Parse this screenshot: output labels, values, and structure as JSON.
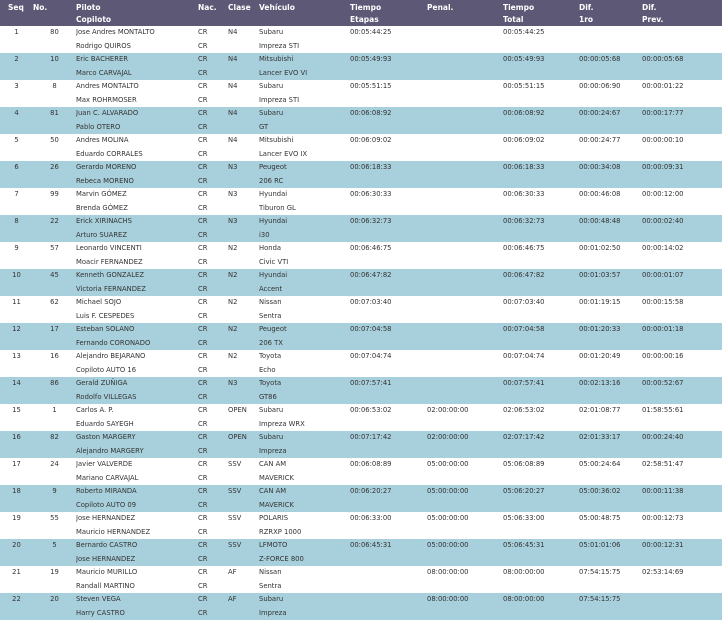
{
  "headers": {
    "seq": "Seq",
    "no": "No.",
    "piloto": "Piloto",
    "copiloto": "Copiloto",
    "nac": "Nac.",
    "clase": "Clase",
    "vehiculo": "Vehículo",
    "tiempo_etapas_1": "Tiempo",
    "tiempo_etapas_2": "Etapas",
    "penal": "Penal.",
    "tiempo_total_1": "Tiempo",
    "tiempo_total_2": "Total",
    "dif1ro_1": "Dif.",
    "dif1ro_2": "1ro",
    "difprev_1": "Dif.",
    "difprev_2": "Prev."
  },
  "rows": [
    {
      "seq": "1",
      "no": "80",
      "piloto": "Jose Andres MONTALTO",
      "copiloto": "Rodrigo QUIROS",
      "nac1": "CR",
      "nac2": "CR",
      "clase": "N4",
      "veh1": "Subaru",
      "veh2": "Impreza STI",
      "etapas": "00:05:44:25",
      "penal": "",
      "total": "00:05:44:25",
      "dif1ro": "",
      "difprev": ""
    },
    {
      "seq": "2",
      "no": "10",
      "piloto": "Eric BACHERER",
      "copiloto": "Marco CARVAJAL",
      "nac1": "CR",
      "nac2": "CR",
      "clase": "N4",
      "veh1": "Mitsubishi",
      "veh2": "Lancer EVO VI",
      "etapas": "00:05:49:93",
      "penal": "",
      "total": "00:05:49:93",
      "dif1ro": "00:00:05:68",
      "difprev": "00:00:05:68"
    },
    {
      "seq": "3",
      "no": "8",
      "piloto": "Andres MONTALTO",
      "copiloto": "Max ROHRMOSER",
      "nac1": "CR",
      "nac2": "CR",
      "clase": "N4",
      "veh1": "Subaru",
      "veh2": "Impreza STI",
      "etapas": "00:05:51:15",
      "penal": "",
      "total": "00:05:51:15",
      "dif1ro": "00:00:06:90",
      "difprev": "00:00:01:22"
    },
    {
      "seq": "4",
      "no": "81",
      "piloto": "Juan C. ALVARADO",
      "copiloto": "Pablo OTERO",
      "nac1": "CR",
      "nac2": "CR",
      "clase": "N4",
      "veh1": "Subaru",
      "veh2": "GT",
      "etapas": "00:06:08:92",
      "penal": "",
      "total": "00:06:08:92",
      "dif1ro": "00:00:24:67",
      "difprev": "00:00:17:77"
    },
    {
      "seq": "5",
      "no": "50",
      "piloto": "Andres MOLINA",
      "copiloto": "Eduardo CORRALES",
      "nac1": "CR",
      "nac2": "CR",
      "clase": "N4",
      "veh1": "Mitsubishi",
      "veh2": "Lancer EVO IX",
      "etapas": "00:06:09:02",
      "penal": "",
      "total": "00:06:09:02",
      "dif1ro": "00:00:24:77",
      "difprev": "00:00:00:10"
    },
    {
      "seq": "6",
      "no": "26",
      "piloto": "Gerardo MORENO",
      "copiloto": "Rebeca MORENO",
      "nac1": "CR",
      "nac2": "CR",
      "clase": "N3",
      "veh1": "Peugeot",
      "veh2": "206 RC",
      "etapas": "00:06:18:33",
      "penal": "",
      "total": "00:06:18:33",
      "dif1ro": "00:00:34:08",
      "difprev": "00:00:09:31"
    },
    {
      "seq": "7",
      "no": "99",
      "piloto": "Marvin GÓMEZ",
      "copiloto": "Brenda GÓMEZ",
      "nac1": "CR",
      "nac2": "CR",
      "clase": "N3",
      "veh1": "Hyundai",
      "veh2": "Tiburon GL",
      "etapas": "00:06:30:33",
      "penal": "",
      "total": "00:06:30:33",
      "dif1ro": "00:00:46:08",
      "difprev": "00:00:12:00"
    },
    {
      "seq": "8",
      "no": "22",
      "piloto": "Erick XIRINACHS",
      "copiloto": "Arturo SUAREZ",
      "nac1": "CR",
      "nac2": "CR",
      "clase": "N3",
      "veh1": "Hyundai",
      "veh2": "i30",
      "etapas": "00:06:32:73",
      "penal": "",
      "total": "00:06:32:73",
      "dif1ro": "00:00:48:48",
      "difprev": "00:00:02:40"
    },
    {
      "seq": "9",
      "no": "57",
      "piloto": "Leonardo VINCENTI",
      "copiloto": "Moacir FERNANDEZ",
      "nac1": "CR",
      "nac2": "CR",
      "clase": "N2",
      "veh1": "Honda",
      "veh2": "Civic VTI",
      "etapas": "00:06:46:75",
      "penal": "",
      "total": "00:06:46:75",
      "dif1ro": "00:01:02:50",
      "difprev": "00:00:14:02"
    },
    {
      "seq": "10",
      "no": "45",
      "piloto": "Kenneth GONZALEZ",
      "copiloto": "Victoria FERNANDEZ",
      "nac1": "CR",
      "nac2": "CR",
      "clase": "N2",
      "veh1": "Hyundai",
      "veh2": "Accent",
      "etapas": "00:06:47:82",
      "penal": "",
      "total": "00:06:47:82",
      "dif1ro": "00:01:03:57",
      "difprev": "00:00:01:07"
    },
    {
      "seq": "11",
      "no": "62",
      "piloto": "Michael SOJO",
      "copiloto": "Luis F. CESPEDES",
      "nac1": "CR",
      "nac2": "CR",
      "clase": "N2",
      "veh1": "Nissan",
      "veh2": "Sentra",
      "etapas": "00:07:03:40",
      "penal": "",
      "total": "00:07:03:40",
      "dif1ro": "00:01:19:15",
      "difprev": "00:00:15:58"
    },
    {
      "seq": "12",
      "no": "17",
      "piloto": "Esteban SOLANO",
      "copiloto": "Fernando CORONADO",
      "nac1": "CR",
      "nac2": "CR",
      "clase": "N2",
      "veh1": "Peugeot",
      "veh2": "206 TX",
      "etapas": "00:07:04:58",
      "penal": "",
      "total": "00:07:04:58",
      "dif1ro": "00:01:20:33",
      "difprev": "00:00:01:18"
    },
    {
      "seq": "13",
      "no": "16",
      "piloto": "Alejandro BEJARANO",
      "copiloto": "Copiloto AUTO 16",
      "nac1": "CR",
      "nac2": "CR",
      "clase": "N2",
      "veh1": "Toyota",
      "veh2": "Echo",
      "etapas": "00:07:04:74",
      "penal": "",
      "total": "00:07:04:74",
      "dif1ro": "00:01:20:49",
      "difprev": "00:00:00:16"
    },
    {
      "seq": "14",
      "no": "86",
      "piloto": "Gerald ZUÑIGA",
      "copiloto": "Rodolfo VILLEGAS",
      "nac1": "CR",
      "nac2": "CR",
      "clase": "N3",
      "veh1": "Toyota",
      "veh2": "GT86",
      "etapas": "00:07:57:41",
      "penal": "",
      "total": "00:07:57:41",
      "dif1ro": "00:02:13:16",
      "difprev": "00:00:52:67"
    },
    {
      "seq": "15",
      "no": "1",
      "piloto": "Carlos A. P.",
      "copiloto": "Eduardo SAYEGH",
      "nac1": "CR",
      "nac2": "CR",
      "clase": "OPEN",
      "veh1": "Subaru",
      "veh2": "Impreza WRX",
      "etapas": "00:06:53:02",
      "penal": "02:00:00:00",
      "total": "02:06:53:02",
      "dif1ro": "02:01:08:77",
      "difprev": "01:58:55:61"
    },
    {
      "seq": "16",
      "no": "82",
      "piloto": "Gaston MARGERY",
      "copiloto": "Alejandro MARGERY",
      "nac1": "CR",
      "nac2": "CR",
      "clase": "OPEN",
      "veh1": "Subaru",
      "veh2": "Impreza",
      "etapas": "00:07:17:42",
      "penal": "02:00:00:00",
      "total": "02:07:17:42",
      "dif1ro": "02:01:33:17",
      "difprev": "00:00:24:40"
    },
    {
      "seq": "17",
      "no": "24",
      "piloto": "Javier VALVERDE",
      "copiloto": "Mariano CARVAJAL",
      "nac1": "CR",
      "nac2": "CR",
      "clase": "SSV",
      "veh1": "CAN AM",
      "veh2": "MAVERICK",
      "etapas": "00:06:08:89",
      "penal": "05:00:00:00",
      "total": "05:06:08:89",
      "dif1ro": "05:00:24:64",
      "difprev": "02:58:51:47"
    },
    {
      "seq": "18",
      "no": "9",
      "piloto": "Roberto MIRANDA",
      "copiloto": "Copiloto AUTO 09",
      "nac1": "CR",
      "nac2": "CR",
      "clase": "SSV",
      "veh1": "CAN AM",
      "veh2": "MAVERICK",
      "etapas": "00:06:20:27",
      "penal": "05:00:00:00",
      "total": "05:06:20:27",
      "dif1ro": "05:00:36:02",
      "difprev": "00:00:11:38"
    },
    {
      "seq": "19",
      "no": "55",
      "piloto": "Jose HERNANDEZ",
      "copiloto": "Mauricio HERNANDEZ",
      "nac1": "CR",
      "nac2": "CR",
      "clase": "SSV",
      "veh1": "POLARIS",
      "veh2": "RZRXP 1000",
      "etapas": "00:06:33:00",
      "penal": "05:00:00:00",
      "total": "05:06:33:00",
      "dif1ro": "05:00:48:75",
      "difprev": "00:00:12:73"
    },
    {
      "seq": "20",
      "no": "5",
      "piloto": "Bernardo CASTRO",
      "copiloto": "Jose HERNANDEZ",
      "nac1": "CR",
      "nac2": "CR",
      "clase": "SSV",
      "veh1": "LFMOTO",
      "veh2": "Z-FORCE 800",
      "etapas": "00:06:45:31",
      "penal": "05:00:00:00",
      "total": "05:06:45:31",
      "dif1ro": "05:01:01:06",
      "difprev": "00:00:12:31"
    },
    {
      "seq": "21",
      "no": "19",
      "piloto": "Mauricio MURILLO",
      "copiloto": "Randall MARTINO",
      "nac1": "CR",
      "nac2": "CR",
      "clase": "AF",
      "veh1": "Nissan",
      "veh2": "Sentra",
      "etapas": "",
      "penal": "08:00:00:00",
      "total": "08:00:00:00",
      "dif1ro": "07:54:15:75",
      "difprev": "02:53:14:69"
    },
    {
      "seq": "22",
      "no": "20",
      "piloto": "Steven VEGA",
      "copiloto": "Harry CASTRO",
      "nac1": "CR",
      "nac2": "CR",
      "clase": "AF",
      "veh1": "Subaru",
      "veh2": "Impreza",
      "etapas": "",
      "penal": "08:00:00:00",
      "total": "08:00:00:00",
      "dif1ro": "07:54:15:75",
      "difprev": ""
    }
  ],
  "colors": {
    "header_bg": "#5c5875",
    "alt_row_bg": "#a8d0dc",
    "text": "#333333"
  }
}
